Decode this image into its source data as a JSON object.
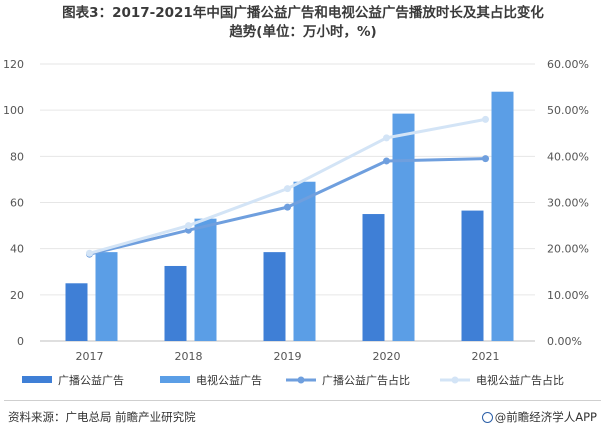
{
  "title": {
    "line1": "图表3：2017-2021年中国广播公益广告和电视公益广告播放时长及其占比变化",
    "line2": "趋势(单位：万小时，%)"
  },
  "colors": {
    "radio_bar": "#3f7fd6",
    "tv_bar": "#5b9ee6",
    "radio_share_line": "#6f9fde",
    "tv_share_line": "#d3e4f6",
    "axis_text": "#555555",
    "grid": "#e6e6e6"
  },
  "chart_data": {
    "type": "bar",
    "categories": [
      "2017",
      "2018",
      "2019",
      "2020",
      "2021"
    ],
    "ylim_left": [
      0,
      120
    ],
    "yticks_left": [
      "0",
      "20",
      "40",
      "60",
      "80",
      "100",
      "120"
    ],
    "ylim_right": [
      0,
      60
    ],
    "yticks_right": [
      "0.00%",
      "10.00%",
      "20.00%",
      "30.00%",
      "40.00%",
      "50.00%",
      "60.00%"
    ],
    "grid": true,
    "legend_position": "bottom",
    "series": [
      {
        "name": "广播公益广告",
        "kind": "bar",
        "axis": "left",
        "values": [
          25,
          32.5,
          38.5,
          55,
          56.5
        ]
      },
      {
        "name": "电视公益广告",
        "kind": "bar",
        "axis": "left",
        "values": [
          38.5,
          53,
          69,
          98.5,
          108
        ]
      },
      {
        "name": "广播公益广告占比",
        "kind": "line",
        "axis": "right",
        "values": [
          18.8,
          24,
          29,
          39,
          39.5
        ]
      },
      {
        "name": "电视公益广告占比",
        "kind": "line",
        "axis": "right",
        "values": [
          19.0,
          25,
          33,
          44,
          48
        ]
      }
    ]
  },
  "footer": {
    "source": "资料来源：广电总局 前瞻产业研究院",
    "brand": "@前瞻经济学人APP"
  }
}
